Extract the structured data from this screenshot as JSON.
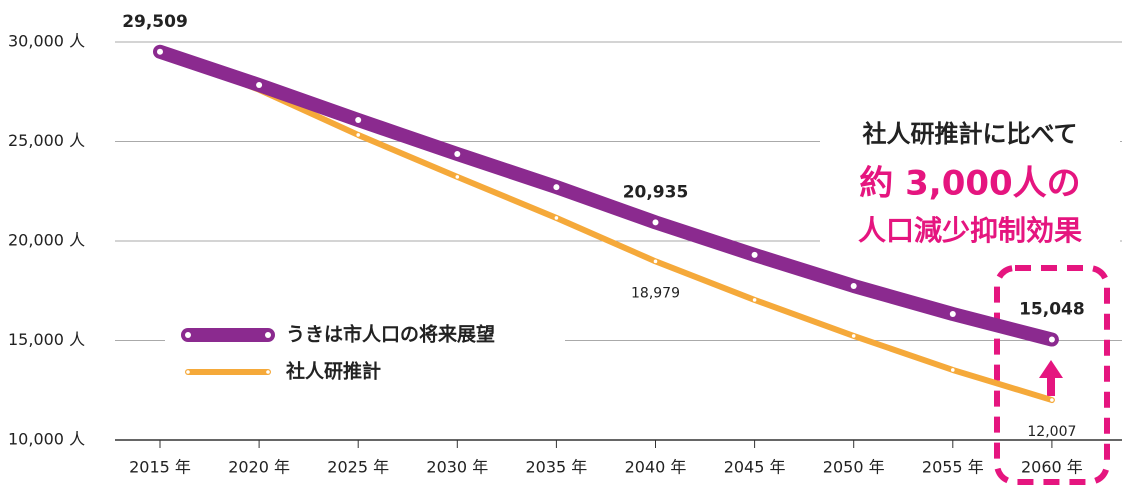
{
  "chart_data": {
    "type": "line",
    "categories": [
      "2015 年",
      "2020 年",
      "2025 年",
      "2030 年",
      "2035 年",
      "2040 年",
      "2045 年",
      "2050 年",
      "2055 年",
      "2060 年"
    ],
    "series": [
      {
        "name": "うきは市人口の将来展望",
        "color": "#8b2a8f",
        "values": [
          29509,
          27840,
          26080,
          24370,
          22710,
          20935,
          19300,
          17740,
          16330,
          15048
        ],
        "value_labels": [
          "29,509",
          null,
          null,
          null,
          null,
          "20,935",
          null,
          null,
          null,
          "15,048"
        ]
      },
      {
        "name": "社人研推計",
        "color": "#f5a93a",
        "values": [
          29509,
          27600,
          25330,
          23220,
          21160,
          18979,
          17040,
          15230,
          13520,
          12007
        ],
        "value_labels": [
          null,
          null,
          null,
          null,
          null,
          "18,979",
          null,
          null,
          null,
          "12,007"
        ]
      }
    ],
    "ylim": [
      10000,
      30000
    ],
    "yticks": [
      {
        "value": 10000,
        "label": "10,000 人"
      },
      {
        "value": 15000,
        "label": "15,000 人"
      },
      {
        "value": 20000,
        "label": "20,000 人"
      },
      {
        "value": 25000,
        "label": "25,000 人"
      },
      {
        "value": 30000,
        "label": "30,000 人"
      }
    ],
    "grid": true,
    "annotations": [
      "社人研推計に比べて",
      "約 3,000人の",
      "人口減少抑制効果"
    ]
  }
}
